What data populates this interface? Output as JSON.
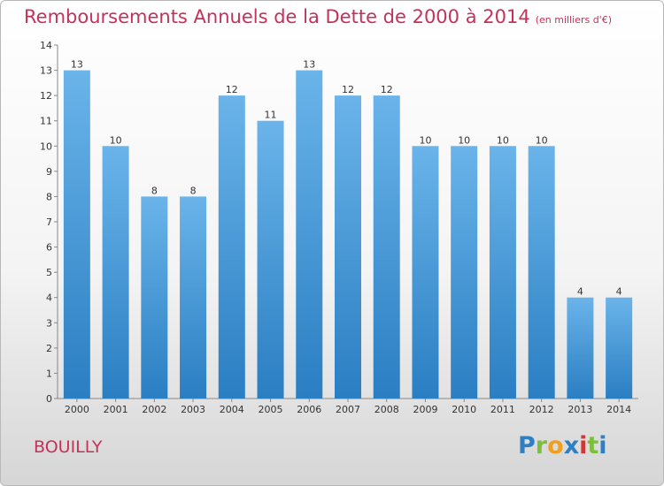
{
  "header": {
    "title": "Remboursements Annuels de la Dette de 2000 à 2014",
    "subtitle": "(en milliers d'€)"
  },
  "location": "BOUILLY",
  "logo": {
    "text": "Proxiti",
    "letters": [
      "P",
      "r",
      "o",
      "x",
      "i",
      "t",
      "i"
    ],
    "colors": [
      "#2f7fc1",
      "#7bbf3a",
      "#f0a020",
      "#2f7fc1",
      "#d03838",
      "#7bbf3a",
      "#2f7fc1"
    ]
  },
  "colors": {
    "title": "#c4325a",
    "bar_light": "#6ab4ea",
    "bar_dark": "#2a7ec2"
  },
  "chart_data": {
    "type": "bar",
    "categories": [
      "2000",
      "2001",
      "2002",
      "2003",
      "2004",
      "2005",
      "2006",
      "2007",
      "2008",
      "2009",
      "2010",
      "2011",
      "2012",
      "2013",
      "2014"
    ],
    "values": [
      13,
      10,
      8,
      8,
      12,
      11,
      13,
      12,
      12,
      10,
      10,
      10,
      10,
      4,
      4
    ],
    "title": "Remboursements Annuels de la Dette de 2000 à 2014",
    "subtitle": "(en milliers d'€)",
    "xlabel": "",
    "ylabel": "",
    "ylim": [
      0,
      14
    ],
    "yticks": [
      0,
      1,
      2,
      3,
      4,
      5,
      6,
      7,
      8,
      9,
      10,
      11,
      12,
      13,
      14
    ],
    "grid": false,
    "legend": "none"
  }
}
